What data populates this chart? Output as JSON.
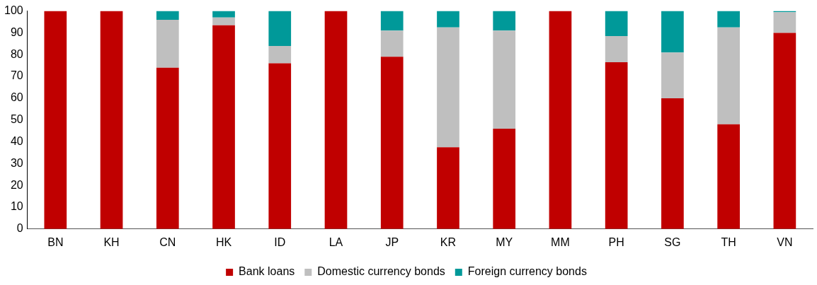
{
  "chart_data": {
    "type": "bar",
    "stacked": true,
    "categories": [
      "BN",
      "KH",
      "CN",
      "HK",
      "ID",
      "LA",
      "JP",
      "KR",
      "MY",
      "MM",
      "PH",
      "SG",
      "TH",
      "VN"
    ],
    "series": [
      {
        "name": "Bank loans",
        "color": "#c00000",
        "values": [
          100,
          100,
          74,
          93.5,
          76,
          100,
          79,
          37.5,
          46,
          100,
          76.5,
          60,
          48,
          90
        ]
      },
      {
        "name": "Domestic currency bonds",
        "color": "#bfbfbf",
        "values": [
          0,
          0,
          22,
          3.5,
          8,
          0,
          12,
          55,
          45,
          0,
          12,
          21,
          44.5,
          9.5
        ]
      },
      {
        "name": "Foreign currency bonds",
        "color": "#009999",
        "values": [
          0,
          0,
          4,
          3,
          16,
          0,
          9,
          7.5,
          9,
          0,
          11.5,
          19,
          7.5,
          0.5
        ]
      }
    ],
    "ylim": [
      0,
      100
    ],
    "yticks": [
      0,
      10,
      20,
      30,
      40,
      50,
      60,
      70,
      80,
      90,
      100
    ],
    "grid": false,
    "legend": "bottom"
  }
}
